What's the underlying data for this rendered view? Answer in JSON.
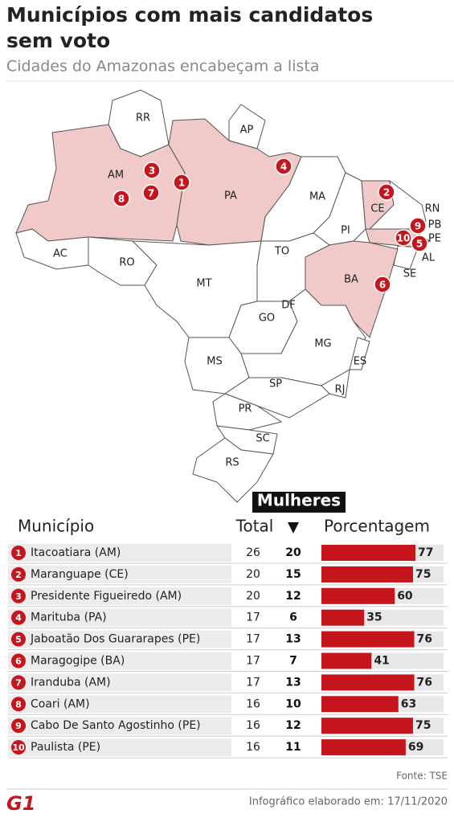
{
  "header": {
    "title": "Municípios com mais candidatos sem voto",
    "subtitle": "Cidades do Amazonas encabeçam a lista"
  },
  "map": {
    "states": [
      "RR",
      "AP",
      "AM",
      "PA",
      "MA",
      "CE",
      "RN",
      "PB",
      "PE",
      "AL",
      "SE",
      "PI",
      "TO",
      "BA",
      "RO",
      "AC",
      "MT",
      "DF",
      "GO",
      "MG",
      "ES",
      "MS",
      "SP",
      "RJ",
      "PR",
      "SC",
      "RS"
    ],
    "markers": [
      1,
      2,
      3,
      4,
      5,
      6,
      7,
      8,
      9,
      10
    ]
  },
  "chart_data": {
    "type": "table-bar",
    "columns": [
      "Município",
      "Total",
      "Mulheres",
      "Porcentagem"
    ],
    "ranks": [
      1,
      2,
      3,
      4,
      5,
      6,
      7,
      8,
      9,
      10
    ],
    "categories": [
      "Itacoatiara (AM)",
      "Maranguape (CE)",
      "Presidente Figueiredo (AM)",
      "Marituba (PA)",
      "Jaboatão Dos Guararapes (PE)",
      "Maragogipe (BA)",
      "Iranduba (AM)",
      "Coari (AM)",
      "Cabo De Santo Agostinho (PE)",
      "Paulista (PE)"
    ],
    "total": [
      26,
      20,
      20,
      17,
      17,
      17,
      17,
      16,
      16,
      16
    ],
    "women": [
      20,
      15,
      12,
      6,
      13,
      7,
      13,
      10,
      12,
      11
    ],
    "values": [
      77,
      75,
      60,
      35,
      76,
      41,
      76,
      63,
      75,
      69
    ],
    "xlim": [
      0,
      100
    ],
    "color": "#c4161c"
  },
  "footer": {
    "source": "Fonte: TSE",
    "logo": "G1",
    "credit": "Infográfico elaborado em: 17/11/2020"
  }
}
